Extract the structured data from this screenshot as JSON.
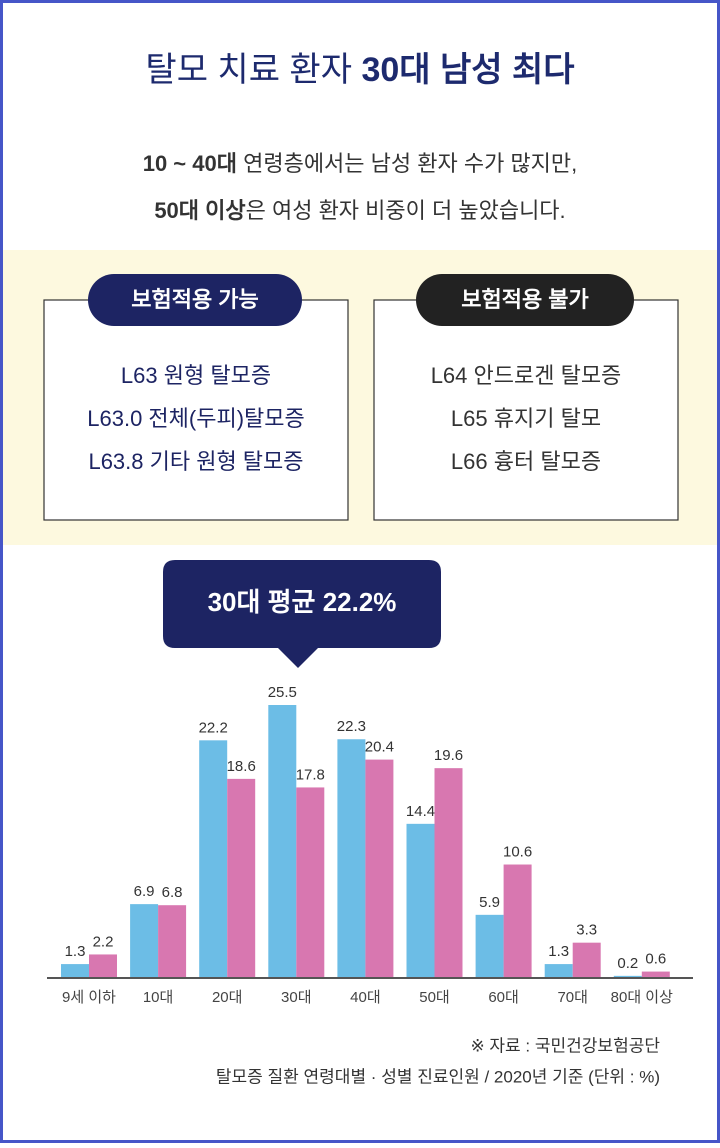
{
  "header": {
    "title": {
      "parts": [
        "탈모 치료 환자 ",
        "30대 남성 최다"
      ]
    },
    "subtitle": [
      [
        "10 ~ 40대",
        " 연령층에서는 남성 환자 수가 많지만,"
      ],
      [
        "50대 이상",
        "은 여성 환자 비중이 더 높았습니다."
      ]
    ]
  },
  "boxes": [
    {
      "label": "보험적용 가능",
      "items": [
        "L63 원형 탈모증",
        "L63.0 전체(두피)탈모증",
        "L63.8 기타 원형 탈모증"
      ]
    },
    {
      "label": "보험적용 불가",
      "items": [
        "L64 안드로겐 탈모증",
        "L65 휴지기 탈모",
        "L66 흉터 탈모증"
      ]
    }
  ],
  "callout": "30대 평균 22.2%",
  "chart_data": {
    "type": "bar",
    "categories": [
      "9세 이하",
      "10대",
      "20대",
      "30대",
      "40대",
      "50대",
      "60대",
      "70대",
      "80대 이상"
    ],
    "series": [
      {
        "color": "#6cbde6",
        "values": [
          1.3,
          6.9,
          22.2,
          25.5,
          22.3,
          14.4,
          5.9,
          1.3,
          0.2
        ]
      },
      {
        "color": "#d877b0",
        "values": [
          2.2,
          6.8,
          18.6,
          17.8,
          20.4,
          19.6,
          10.6,
          3.3,
          0.6
        ]
      }
    ]
  },
  "footer": {
    "source": "※ 자료 : 국민건강보험공단",
    "note": "탈모증 질환 연령대별 · 성별 진료인원 / 2020년 기준 (단위 : %)"
  }
}
